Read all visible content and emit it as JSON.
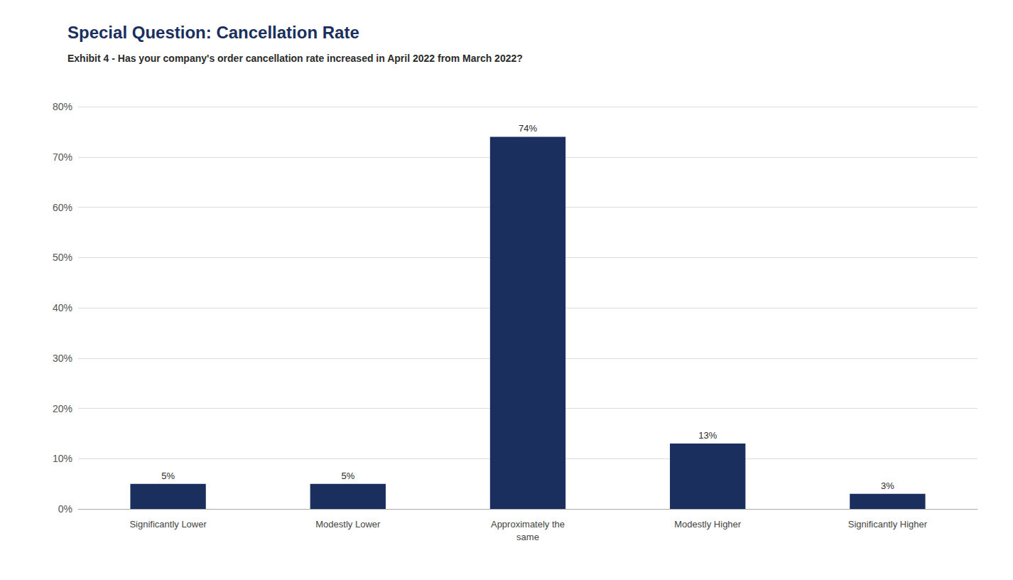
{
  "chart_data": {
    "type": "bar",
    "title": "Special Question: Cancellation Rate",
    "subtitle": "Exhibit 4 - Has your company's order cancellation rate increased in April 2022 from March 2022?",
    "categories": [
      "Significantly Lower",
      "Modestly Lower",
      "Approximately the\nsame",
      "Modestly Higher",
      "Significantly Higher"
    ],
    "values": [
      5,
      5,
      74,
      13,
      3
    ],
    "value_labels": [
      "5%",
      "5%",
      "74%",
      "13%",
      "3%"
    ],
    "data_labels": true,
    "color": "#1b2f5e",
    "ylim": [
      0,
      80
    ],
    "yticks": [
      {
        "value": 0,
        "label": "0%"
      },
      {
        "value": 10,
        "label": "10%"
      },
      {
        "value": 20,
        "label": "20%"
      },
      {
        "value": 30,
        "label": "30%"
      },
      {
        "value": 40,
        "label": "40%"
      },
      {
        "value": 50,
        "label": "50%"
      },
      {
        "value": 60,
        "label": "60%"
      },
      {
        "value": 70,
        "label": "70%"
      },
      {
        "value": 80,
        "label": "80%"
      }
    ],
    "grid": true
  }
}
